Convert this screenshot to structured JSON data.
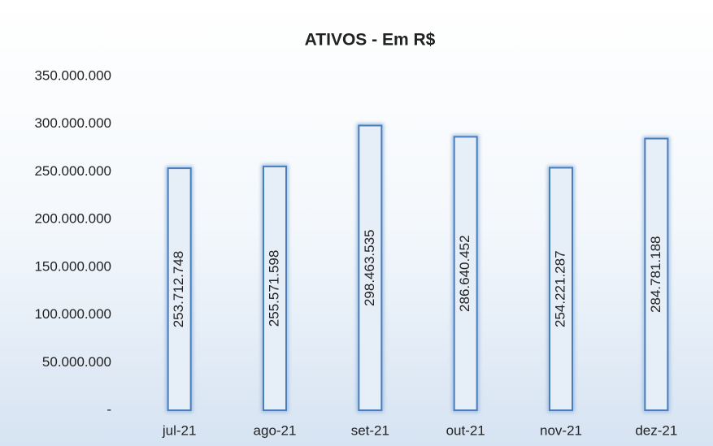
{
  "chart_data": {
    "type": "bar",
    "title": "ATIVOS - Em R$",
    "categories": [
      "jul-21",
      "ago-21",
      "set-21",
      "out-21",
      "nov-21",
      "dez-21"
    ],
    "values": [
      253712748,
      255571598,
      298463535,
      286640452,
      254221287,
      284781188
    ],
    "value_labels": [
      "253.712.748",
      "255.571.598",
      "298.463.535",
      "286.640.452",
      "254.221.287",
      "284.781.188"
    ],
    "color": "#4a7ebb",
    "ylim": [
      0,
      350000000
    ],
    "yticks": [
      {
        "value": 0,
        "label": "-"
      },
      {
        "value": 50000000,
        "label": "50.000.000"
      },
      {
        "value": 100000000,
        "label": "100.000.000"
      },
      {
        "value": 150000000,
        "label": "150.000.000"
      },
      {
        "value": 200000000,
        "label": "200.000.000"
      },
      {
        "value": 250000000,
        "label": "250.000.000"
      },
      {
        "value": 300000000,
        "label": "300.000.000"
      },
      {
        "value": 350000000,
        "label": "350.000.000"
      }
    ],
    "grid": false
  }
}
